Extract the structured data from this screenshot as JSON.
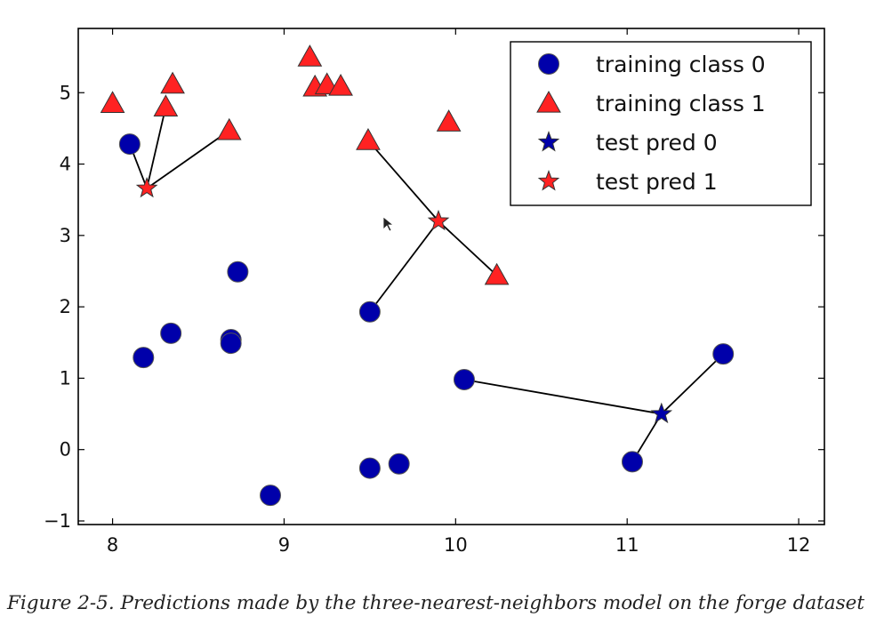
{
  "caption": "Figure 2-5. Predictions made by the three-nearest-neighbors model on the forge dataset",
  "chart_data": {
    "type": "scatter",
    "title": "",
    "xlabel": "",
    "ylabel": "",
    "xlim": [
      7.8,
      12.15
    ],
    "ylim": [
      -1.05,
      5.9
    ],
    "x_ticks": [
      8,
      9,
      10,
      11,
      12
    ],
    "y_ticks": [
      -1,
      0,
      1,
      2,
      3,
      4,
      5
    ],
    "x_tick_labels": [
      "8",
      "9",
      "10",
      "11",
      "12"
    ],
    "y_tick_labels": [
      "−1",
      "0",
      "1",
      "2",
      "3",
      "4",
      "5"
    ],
    "grid": false,
    "legend_position": "top-right",
    "colors": {
      "class0": "#0000aa",
      "class1": "#ff2222"
    },
    "series": [
      {
        "name": "training class 0",
        "marker": "circle",
        "color": "#0000aa",
        "points": [
          [
            8.1,
            4.28
          ],
          [
            8.73,
            2.49
          ],
          [
            9.5,
            1.93
          ],
          [
            8.34,
            1.63
          ],
          [
            8.18,
            1.29
          ],
          [
            8.69,
            1.54
          ],
          [
            8.69,
            1.49
          ],
          [
            10.05,
            0.98
          ],
          [
            11.56,
            1.34
          ],
          [
            11.03,
            -0.17
          ],
          [
            9.5,
            -0.26
          ],
          [
            9.67,
            -0.2
          ],
          [
            8.92,
            -0.64
          ]
        ]
      },
      {
        "name": "training class 1",
        "marker": "triangle",
        "color": "#ff2222",
        "points": [
          [
            8.0,
            4.85
          ],
          [
            8.31,
            4.8
          ],
          [
            8.35,
            5.12
          ],
          [
            8.68,
            4.47
          ],
          [
            9.15,
            5.5
          ],
          [
            9.18,
            5.08
          ],
          [
            9.25,
            5.11
          ],
          [
            9.33,
            5.09
          ],
          [
            9.49,
            4.33
          ],
          [
            9.96,
            4.59
          ],
          [
            10.24,
            2.44
          ]
        ]
      },
      {
        "name": "test pred 0",
        "marker": "star",
        "color": "#0000aa",
        "points": [
          [
            11.2,
            0.5
          ]
        ]
      },
      {
        "name": "test pred 1",
        "marker": "star",
        "color": "#ff2222",
        "points": [
          [
            8.2,
            3.66
          ],
          [
            9.9,
            3.2
          ]
        ]
      }
    ],
    "neighbor_links": [
      {
        "test": [
          8.2,
          3.66
        ],
        "neighbors": [
          [
            8.1,
            4.28
          ],
          [
            8.31,
            4.8
          ],
          [
            8.68,
            4.47
          ]
        ]
      },
      {
        "test": [
          9.9,
          3.2
        ],
        "neighbors": [
          [
            9.49,
            4.33
          ],
          [
            10.24,
            2.44
          ],
          [
            9.5,
            1.93
          ]
        ]
      },
      {
        "test": [
          11.2,
          0.5
        ],
        "neighbors": [
          [
            10.05,
            0.98
          ],
          [
            11.56,
            1.34
          ],
          [
            11.03,
            -0.17
          ]
        ]
      }
    ]
  }
}
